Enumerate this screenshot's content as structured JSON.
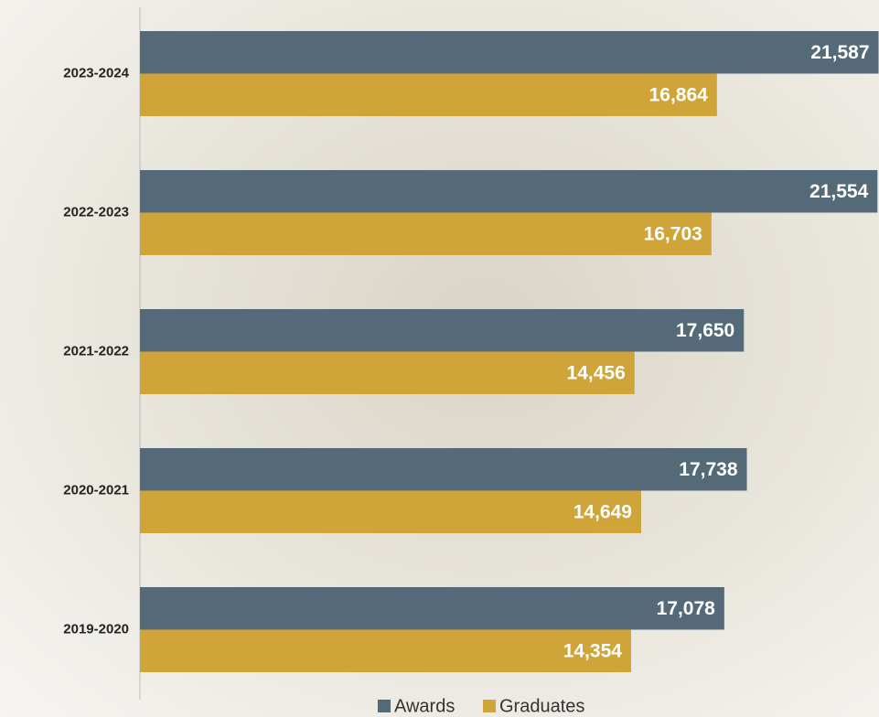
{
  "chart_data": {
    "type": "bar",
    "orientation": "horizontal",
    "categories": [
      "2023-2024",
      "2022-2023",
      "2021-2022",
      "2020-2021",
      "2019-2020"
    ],
    "series": [
      {
        "name": "Awards",
        "color": "#546a79",
        "values": [
          21587,
          21554,
          17650,
          17738,
          17078
        ],
        "value_labels": [
          "21,587",
          "21,554",
          "17,650",
          "17,738",
          "17,078"
        ]
      },
      {
        "name": "Graduates",
        "color": "#cfa53a",
        "values": [
          16864,
          16703,
          14456,
          14649,
          14354
        ],
        "value_labels": [
          "16,864",
          "16,703",
          "14,456",
          "14,649",
          "14,354"
        ]
      }
    ],
    "xlim": [
      0,
      21600
    ]
  }
}
